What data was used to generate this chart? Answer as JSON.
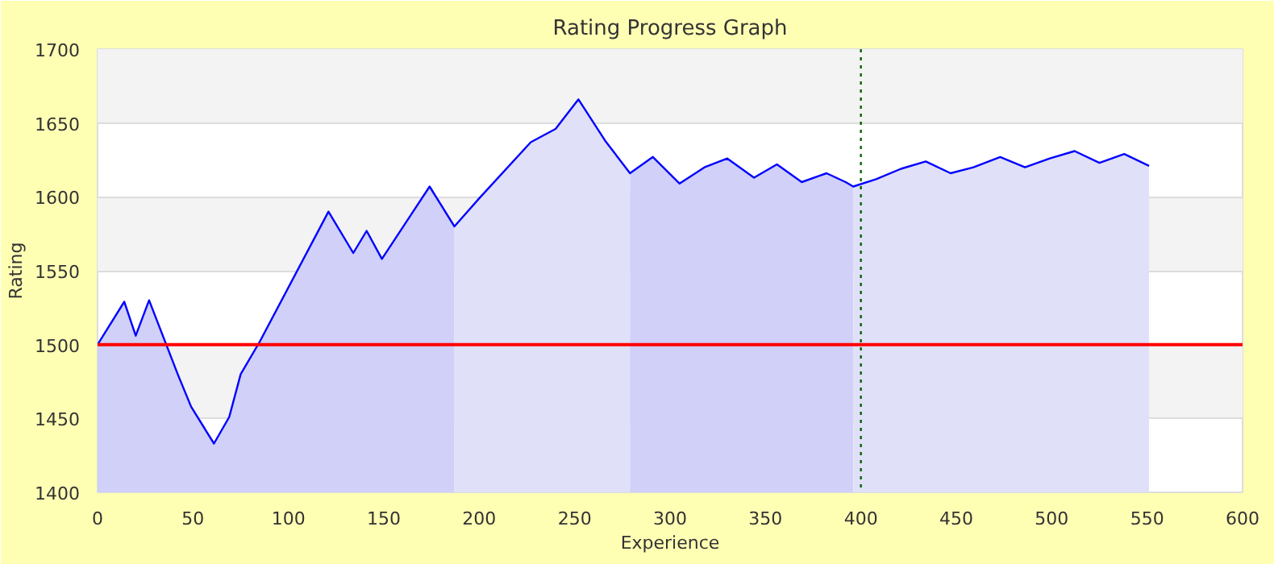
{
  "chart_data": {
    "type": "area",
    "title": "Rating Progress Graph",
    "xlabel": "Experience",
    "ylabel": "Rating",
    "xlim": [
      0,
      600
    ],
    "xticks": [
      0,
      50,
      100,
      150,
      200,
      250,
      300,
      350,
      400,
      450,
      500,
      550,
      600
    ],
    "ylim": [
      1400,
      1700
    ],
    "yticks": [
      1400,
      1450,
      1500,
      1550,
      1600,
      1650,
      1700
    ],
    "grid": "y",
    "marker": "none",
    "line_style": "solid",
    "series": [
      {
        "color": "#d0d0f8",
        "x": [
          0,
          14,
          20,
          27,
          42,
          49,
          61,
          69,
          75,
          85,
          121,
          134,
          141,
          149,
          174,
          187
        ],
        "values": [
          1500,
          1529,
          1506,
          1530,
          1480,
          1458,
          1433,
          1451,
          1480,
          1502,
          1590,
          1562,
          1577,
          1558,
          1607,
          1580
        ]
      },
      {
        "color": "#e0e0f8",
        "x": [
          187,
          200,
          227,
          240,
          252,
          266,
          279
        ],
        "values": [
          1580,
          1599,
          1637,
          1646,
          1666,
          1638,
          1616
        ]
      },
      {
        "color": "#d0d0f8",
        "x": [
          279,
          291,
          305,
          318,
          330,
          344,
          356,
          369,
          382,
          392,
          396
        ],
        "values": [
          1616,
          1627,
          1609,
          1620,
          1626,
          1613,
          1622,
          1610,
          1616,
          1610,
          1607
        ]
      },
      {
        "color": "#e0e0f8",
        "x": [
          396,
          408,
          421,
          434,
          447,
          459,
          473,
          486,
          499,
          512,
          525,
          538,
          551
        ],
        "values": [
          1607,
          1612,
          1619,
          1624,
          1616,
          1620,
          1627,
          1620,
          1626,
          1631,
          1623,
          1629,
          1621
        ]
      },
      {
        "type": "line",
        "color": "#0000ff",
        "x": [
          0,
          14,
          20,
          27,
          42,
          49,
          61,
          69,
          75,
          85,
          121,
          134,
          141,
          149,
          174,
          187,
          200,
          227,
          240,
          252,
          266,
          279,
          291,
          305,
          318,
          330,
          344,
          356,
          369,
          382,
          392,
          396,
          408,
          421,
          434,
          447,
          459,
          473,
          486,
          499,
          512,
          525,
          538,
          551
        ],
        "values": [
          1500,
          1529,
          1506,
          1530,
          1480,
          1458,
          1433,
          1451,
          1480,
          1502,
          1590,
          1562,
          1577,
          1558,
          1607,
          1580,
          1599,
          1637,
          1646,
          1666,
          1638,
          1616,
          1627,
          1609,
          1620,
          1626,
          1613,
          1622,
          1610,
          1616,
          1610,
          1607,
          1612,
          1619,
          1624,
          1616,
          1620,
          1627,
          1620,
          1626,
          1631,
          1623,
          1629,
          1621
        ]
      }
    ],
    "ref_lines": [
      {
        "axis": "y",
        "value": 1500,
        "color": "#ff0000",
        "line_style": "solid"
      },
      {
        "axis": "x",
        "value": 400,
        "color": "#006600",
        "line_style": "dotted"
      }
    ]
  }
}
